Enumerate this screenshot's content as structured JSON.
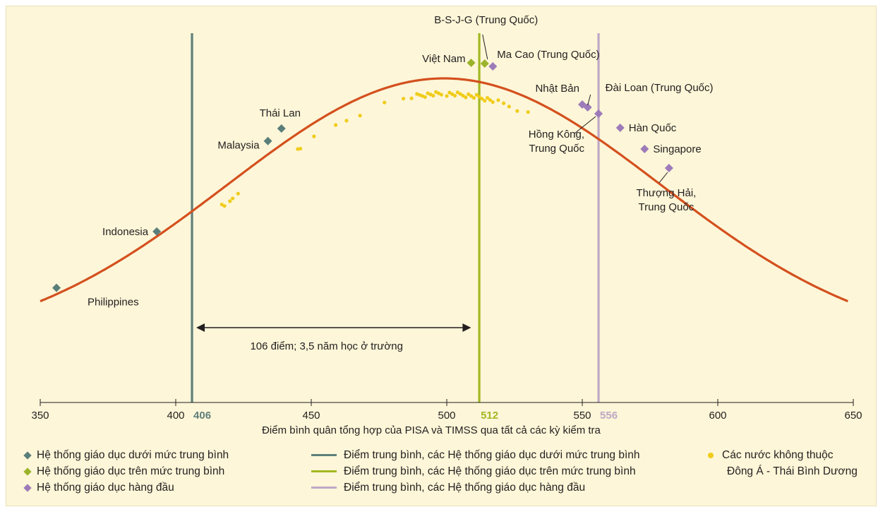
{
  "colors": {
    "background": "#fdf6d8",
    "curve": "#d4501e",
    "below_average": "#5a7f7a",
    "above_average": "#9bb32b",
    "top_performing": "#9d7bb9",
    "non_east_asia_pacific": "#f0cc1a",
    "line_below": "#5e7f7b",
    "line_above": "#a2b823",
    "line_top": "#c0a8c6"
  },
  "chart_data": {
    "type": "scatter",
    "xlabel": "Điểm bình quân tổng hợp của PISA và TIMSS qua tất cả các kỳ kiểm tra",
    "xlim": [
      350,
      650
    ],
    "xticks": [
      {
        "value": 350,
        "label": "350"
      },
      {
        "value": 400,
        "label": "400"
      },
      {
        "value": 450,
        "label": "450"
      },
      {
        "value": 500,
        "label": "500"
      },
      {
        "value": 550,
        "label": "550"
      },
      {
        "value": 600,
        "label": "600"
      },
      {
        "value": 650,
        "label": "650"
      }
    ],
    "reference_lines": [
      {
        "name": "Điểm trung bình, các Hệ thống giáo dục dưới mức trung bình",
        "x": 406,
        "label": "406",
        "color": "#5e7f7b"
      },
      {
        "name": "Điểm trung bình, các Hệ thống giáo dục trên mức trung bình",
        "x": 512,
        "label": "512",
        "color": "#a2b823"
      },
      {
        "name": "Điểm trung bình, các Hệ thống giáo dục hàng đầu",
        "x": 556,
        "label": "556",
        "color": "#c0a8c6"
      }
    ],
    "gap_annotation": {
      "from": 406,
      "to": 510,
      "label": "106 điểm; 3,5 năm học ở trường"
    },
    "curve": {
      "type": "normal",
      "mean": 499,
      "sd": 80
    },
    "series": [
      {
        "name": "Hệ thống giáo dục dưới mức trung bình",
        "marker": "diamond",
        "color": "#5a7f7a",
        "points": [
          {
            "x": 356,
            "label": "Philippines"
          },
          {
            "x": 393,
            "label": "Indonesia"
          },
          {
            "x": 434,
            "label": "Malaysia"
          },
          {
            "x": 439,
            "label": "Thái Lan"
          }
        ]
      },
      {
        "name": "Hệ thống giáo dục trên mức trung bình",
        "marker": "diamond",
        "color": "#9bb32b",
        "points": [
          {
            "x": 509,
            "label": "Việt Nam"
          },
          {
            "x": 514,
            "label": "B-S-J-G (Trung Quốc)"
          }
        ]
      },
      {
        "name": "Hệ thống giáo dục hàng đầu",
        "marker": "diamond",
        "color": "#9d7bb9",
        "points": [
          {
            "x": 517,
            "label": "Ma Cao (Trung Quốc)"
          },
          {
            "x": 550,
            "label": "Nhật Bản"
          },
          {
            "x": 552,
            "label": "Đài Loan (Trung Quốc)"
          },
          {
            "x": 556,
            "label": "Hồng Kông, Trung Quốc"
          },
          {
            "x": 564,
            "label": "Hàn Quốc"
          },
          {
            "x": 573,
            "label": "Singapore"
          },
          {
            "x": 582,
            "label": "Thượng Hải, Trung Quốc"
          }
        ]
      },
      {
        "name": "Các nước không thuộc Đông Á - Thái Bình Dương",
        "marker": "dot",
        "color": "#f0cc1a",
        "points": [
          {
            "x": 417
          },
          {
            "x": 418
          },
          {
            "x": 420
          },
          {
            "x": 421
          },
          {
            "x": 423
          },
          {
            "x": 445
          },
          {
            "x": 446
          },
          {
            "x": 451
          },
          {
            "x": 459
          },
          {
            "x": 463
          },
          {
            "x": 468
          },
          {
            "x": 477
          },
          {
            "x": 484
          },
          {
            "x": 487
          },
          {
            "x": 489
          },
          {
            "x": 490
          },
          {
            "x": 491
          },
          {
            "x": 492
          },
          {
            "x": 493
          },
          {
            "x": 494
          },
          {
            "x": 495
          },
          {
            "x": 496
          },
          {
            "x": 497
          },
          {
            "x": 498
          },
          {
            "x": 500
          },
          {
            "x": 501
          },
          {
            "x": 502
          },
          {
            "x": 503
          },
          {
            "x": 504
          },
          {
            "x": 505
          },
          {
            "x": 506
          },
          {
            "x": 507
          },
          {
            "x": 508
          },
          {
            "x": 509
          },
          {
            "x": 510
          },
          {
            "x": 511
          },
          {
            "x": 512
          },
          {
            "x": 513
          },
          {
            "x": 514
          },
          {
            "x": 515
          },
          {
            "x": 516
          },
          {
            "x": 517
          },
          {
            "x": 519
          },
          {
            "x": 521
          },
          {
            "x": 523
          },
          {
            "x": 526
          },
          {
            "x": 530
          }
        ]
      }
    ],
    "grid": false,
    "legend_position": "bottom"
  },
  "legend": {
    "col1": [
      "Hệ thống giáo dục dưới mức trung bình",
      "Hệ thống giáo dục trên mức trung bình",
      "Hệ thống giáo dục hàng đầu"
    ],
    "col2": [
      "Điểm trung bình, các Hệ thống giáo dục dưới mức trung bình",
      "Điểm trung bình, các Hệ thống giáo dục trên mức trung bình",
      "Điểm trung bình, các Hệ thống giáo dục hàng đầu"
    ],
    "col3_line1": "Các nước không thuộc",
    "col3_line2": "Đông Á - Thái Bình Dương"
  }
}
